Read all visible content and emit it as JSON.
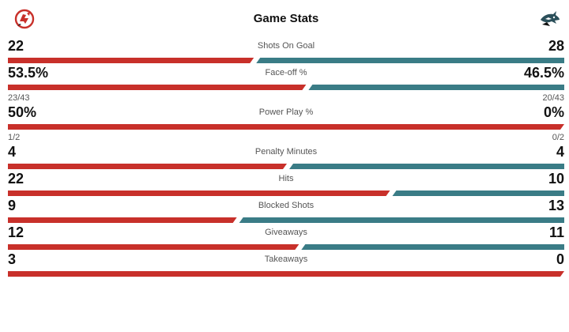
{
  "header": {
    "title": "Game Stats",
    "home_logo_icon": "devils-logo-icon",
    "away_logo_icon": "sharks-logo-icon"
  },
  "colors": {
    "home": "#c8302a",
    "away": "#3a7c86"
  },
  "stats": [
    {
      "label": "Shots On Goal",
      "home": "22",
      "away": "28",
      "home_share": 0.44,
      "home_sub": "",
      "away_sub": ""
    },
    {
      "label": "Face-off %",
      "home": "53.5%",
      "away": "46.5%",
      "home_share": 0.535,
      "home_sub": "23/43",
      "away_sub": "20/43"
    },
    {
      "label": "Power Play %",
      "home": "50%",
      "away": "0%",
      "home_share": 1.0,
      "home_sub": "1/2",
      "away_sub": "0/2"
    },
    {
      "label": "Penalty Minutes",
      "home": "4",
      "away": "4",
      "home_share": 0.5,
      "home_sub": "",
      "away_sub": ""
    },
    {
      "label": "Hits",
      "home": "22",
      "away": "10",
      "home_share": 0.6875,
      "home_sub": "",
      "away_sub": ""
    },
    {
      "label": "Blocked Shots",
      "home": "9",
      "away": "13",
      "home_share": 0.409,
      "home_sub": "",
      "away_sub": ""
    },
    {
      "label": "Giveaways",
      "home": "12",
      "away": "11",
      "home_share": 0.522,
      "home_sub": "",
      "away_sub": ""
    },
    {
      "label": "Takeaways",
      "home": "3",
      "away": "0",
      "home_share": 1.0,
      "home_sub": "",
      "away_sub": ""
    }
  ]
}
